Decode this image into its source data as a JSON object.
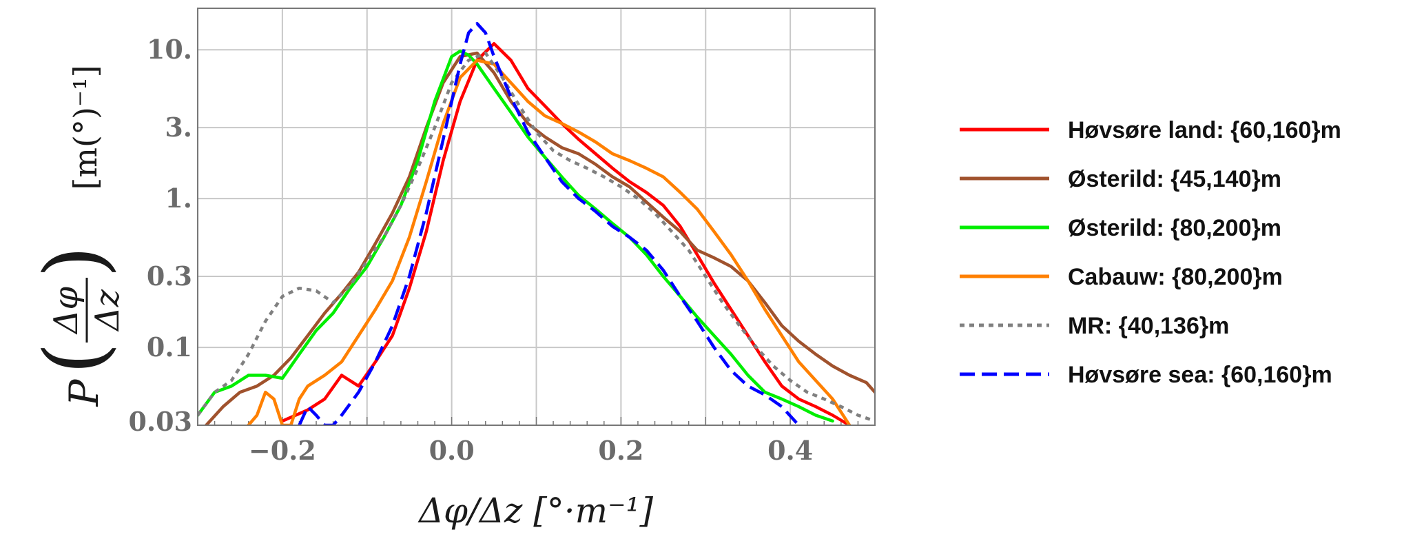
{
  "chart_data": {
    "type": "line",
    "title": "",
    "xlabel": "Δφ/Δz [°·m⁻¹]",
    "ylabel": {
      "p": "P",
      "frac_num": "Δφ",
      "frac_den": "Δz",
      "unit": "[m(°)⁻¹]"
    },
    "xlim": [
      -0.3,
      0.5
    ],
    "ylim": [
      0.03,
      19
    ],
    "yscale": "log",
    "grid": true,
    "legend_position": "right",
    "xticks": [
      {
        "value": -0.2,
        "label": "−0.2"
      },
      {
        "value": 0.0,
        "label": "0.0"
      },
      {
        "value": 0.2,
        "label": "0.2"
      },
      {
        "value": 0.4,
        "label": "0.4"
      }
    ],
    "yticks": [
      {
        "value": 0.03,
        "label": "0.03"
      },
      {
        "value": 0.1,
        "label": "0.1"
      },
      {
        "value": 0.3,
        "label": "0.3"
      },
      {
        "value": 1,
        "label": "1."
      },
      {
        "value": 3,
        "label": "3."
      },
      {
        "value": 10,
        "label": "10."
      }
    ],
    "series": [
      {
        "name": "Høvsøre land: {60,160}m",
        "color": "#ff0000",
        "style": "solid",
        "x": [
          -0.2,
          -0.17,
          -0.15,
          -0.13,
          -0.11,
          -0.09,
          -0.07,
          -0.05,
          -0.03,
          -0.01,
          0.01,
          0.03,
          0.05,
          0.07,
          0.09,
          0.11,
          0.13,
          0.15,
          0.17,
          0.19,
          0.21,
          0.23,
          0.25,
          0.27,
          0.29,
          0.31,
          0.33,
          0.35,
          0.37,
          0.39,
          0.41,
          0.43,
          0.45,
          0.47
        ],
        "y": [
          0.032,
          0.038,
          0.045,
          0.065,
          0.055,
          0.08,
          0.12,
          0.25,
          0.6,
          1.8,
          4.5,
          8.5,
          11,
          8.5,
          5.5,
          4.2,
          3.2,
          2.5,
          2.0,
          1.6,
          1.3,
          1.1,
          0.9,
          0.65,
          0.42,
          0.27,
          0.18,
          0.12,
          0.08,
          0.055,
          0.045,
          0.04,
          0.035,
          0.03
        ]
      },
      {
        "name": "Østerild: {45,140}m",
        "color": "#a0522d",
        "style": "solid",
        "x": [
          -0.29,
          -0.27,
          -0.25,
          -0.23,
          -0.21,
          -0.19,
          -0.17,
          -0.15,
          -0.13,
          -0.11,
          -0.09,
          -0.07,
          -0.05,
          -0.03,
          -0.01,
          0.01,
          0.03,
          0.05,
          0.07,
          0.09,
          0.11,
          0.13,
          0.15,
          0.17,
          0.19,
          0.21,
          0.23,
          0.25,
          0.27,
          0.29,
          0.31,
          0.33,
          0.35,
          0.37,
          0.39,
          0.41,
          0.43,
          0.45,
          0.47,
          0.49,
          0.5
        ],
        "y": [
          0.03,
          0.04,
          0.05,
          0.055,
          0.065,
          0.085,
          0.12,
          0.17,
          0.23,
          0.32,
          0.5,
          0.8,
          1.4,
          3.0,
          6.0,
          9.0,
          9.5,
          7.0,
          4.5,
          3.2,
          2.6,
          2.2,
          2.0,
          1.7,
          1.4,
          1.2,
          0.95,
          0.75,
          0.6,
          0.45,
          0.4,
          0.35,
          0.28,
          0.2,
          0.14,
          0.11,
          0.09,
          0.075,
          0.065,
          0.058,
          0.05
        ]
      },
      {
        "name": "Østerild: {80,200}m",
        "color": "#00ee00",
        "style": "solid",
        "x": [
          -0.3,
          -0.28,
          -0.26,
          -0.24,
          -0.22,
          -0.2,
          -0.18,
          -0.16,
          -0.14,
          -0.12,
          -0.1,
          -0.08,
          -0.06,
          -0.04,
          -0.02,
          0.0,
          0.01,
          0.02,
          0.03,
          0.05,
          0.07,
          0.09,
          0.11,
          0.13,
          0.15,
          0.17,
          0.19,
          0.21,
          0.23,
          0.25,
          0.27,
          0.29,
          0.31,
          0.33,
          0.35,
          0.37,
          0.39,
          0.41,
          0.43,
          0.45
        ],
        "y": [
          0.035,
          0.05,
          0.055,
          0.065,
          0.065,
          0.062,
          0.09,
          0.13,
          0.17,
          0.25,
          0.35,
          0.55,
          0.9,
          1.8,
          4.5,
          9.0,
          9.8,
          9.2,
          8.0,
          5.5,
          3.8,
          2.6,
          1.9,
          1.4,
          1.05,
          0.85,
          0.68,
          0.55,
          0.42,
          0.3,
          0.22,
          0.16,
          0.12,
          0.09,
          0.065,
          0.05,
          0.045,
          0.04,
          0.035,
          0.032
        ]
      },
      {
        "name": "Cabauw: {80,200}m",
        "color": "#ff8000",
        "style": "solid",
        "x": [
          -0.24,
          -0.23,
          -0.22,
          -0.21,
          -0.2,
          -0.19,
          -0.18,
          -0.17,
          -0.15,
          -0.13,
          -0.11,
          -0.09,
          -0.07,
          -0.05,
          -0.03,
          -0.01,
          0.01,
          0.03,
          0.05,
          0.07,
          0.09,
          0.11,
          0.13,
          0.15,
          0.17,
          0.19,
          0.21,
          0.23,
          0.25,
          0.27,
          0.29,
          0.31,
          0.33,
          0.35,
          0.37,
          0.39,
          0.41,
          0.43,
          0.45,
          0.47
        ],
        "y": [
          0.03,
          0.035,
          0.05,
          0.045,
          0.03,
          0.03,
          0.045,
          0.055,
          0.065,
          0.08,
          0.12,
          0.18,
          0.28,
          0.55,
          1.3,
          3.2,
          6.5,
          8.5,
          8.0,
          6.0,
          4.5,
          3.6,
          3.2,
          2.8,
          2.4,
          2.0,
          1.8,
          1.6,
          1.4,
          1.1,
          0.85,
          0.6,
          0.42,
          0.28,
          0.18,
          0.12,
          0.08,
          0.06,
          0.045,
          0.03
        ]
      },
      {
        "name": "MR: {40,136}m",
        "color": "#808080",
        "style": "dotted",
        "x": [
          -0.3,
          -0.28,
          -0.26,
          -0.24,
          -0.22,
          -0.2,
          -0.18,
          -0.16,
          -0.14,
          -0.12,
          -0.1,
          -0.08,
          -0.06,
          -0.04,
          -0.02,
          0.0,
          0.02,
          0.04,
          0.06,
          0.08,
          0.1,
          0.12,
          0.14,
          0.16,
          0.18,
          0.2,
          0.22,
          0.24,
          0.26,
          0.28,
          0.3,
          0.32,
          0.34,
          0.36,
          0.38,
          0.4,
          0.42,
          0.44,
          0.46,
          0.48,
          0.5
        ],
        "y": [
          0.035,
          0.05,
          0.06,
          0.09,
          0.15,
          0.22,
          0.25,
          0.24,
          0.2,
          0.26,
          0.38,
          0.55,
          0.9,
          1.6,
          3.0,
          6.0,
          8.5,
          9.5,
          6.5,
          4.2,
          2.8,
          2.1,
          1.8,
          1.6,
          1.4,
          1.2,
          1.0,
          0.8,
          0.6,
          0.45,
          0.3,
          0.2,
          0.14,
          0.1,
          0.075,
          0.06,
          0.05,
          0.045,
          0.04,
          0.035,
          0.032
        ]
      },
      {
        "name": "Høvsøre sea: {60,160}m",
        "color": "#0000ff",
        "style": "dashed",
        "x": [
          -0.18,
          -0.17,
          -0.16,
          -0.15,
          -0.14,
          -0.13,
          -0.11,
          -0.09,
          -0.07,
          -0.05,
          -0.03,
          -0.01,
          0.01,
          0.02,
          0.03,
          0.04,
          0.05,
          0.07,
          0.09,
          0.11,
          0.13,
          0.15,
          0.17,
          0.19,
          0.21,
          0.23,
          0.25,
          0.27,
          0.29,
          0.31,
          0.33,
          0.35,
          0.37,
          0.39,
          0.41
        ],
        "y": [
          0.03,
          0.04,
          0.035,
          0.03,
          0.03,
          0.035,
          0.05,
          0.08,
          0.14,
          0.3,
          0.8,
          2.5,
          8.0,
          13.0,
          15.0,
          13.0,
          9.0,
          4.8,
          2.8,
          1.9,
          1.3,
          1.0,
          0.82,
          0.65,
          0.55,
          0.45,
          0.33,
          0.22,
          0.15,
          0.1,
          0.07,
          0.055,
          0.048,
          0.04,
          0.03
        ]
      }
    ]
  }
}
